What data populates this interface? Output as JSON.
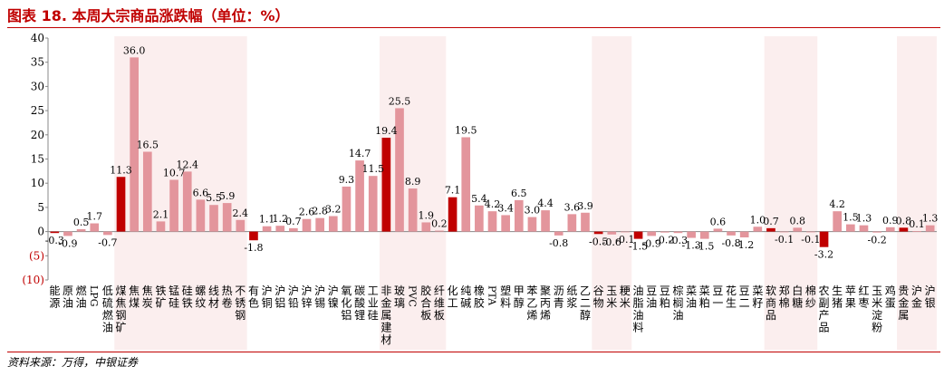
{
  "title": "图表 18. 本周大宗商品涨跌幅（单位：%）",
  "source": "资料来源：万得，中银证券",
  "colors": {
    "bar": "#e3959c",
    "highlight": "#c00000",
    "band": "#fbeeee",
    "title": "#c00000"
  },
  "chart_data": {
    "type": "bar",
    "title": "本周大宗商品涨跌幅（单位：%）",
    "ylabel": "%",
    "ylim": [
      -10,
      40
    ],
    "yticks": [
      "40",
      "35",
      "30",
      "25",
      "20",
      "15",
      "10",
      "5",
      "0",
      "(5)",
      "(10)"
    ],
    "ytick_values": [
      40,
      35,
      30,
      25,
      20,
      15,
      10,
      5,
      0,
      -5,
      -10
    ],
    "categories": [
      "能源",
      "原油",
      "燃油",
      "LPG",
      "低硫燃油",
      "煤焦钢矿",
      "焦煤",
      "焦炭",
      "铁矿",
      "锰硅",
      "硅铁",
      "螺纹",
      "线材",
      "热卷",
      "不锈钢",
      "有色",
      "沪铜",
      "沪铝",
      "沪铅",
      "沪锌",
      "沪锡",
      "沪镍",
      "氧化铝",
      "碳酸锂",
      "工业硅",
      "非金属建材",
      "玻璃",
      "PVC",
      "胶合板",
      "纤维板",
      "化工",
      "纯碱",
      "橡胶",
      "PTA",
      "塑料",
      "甲醇",
      "苯乙烯",
      "聚丙烯",
      "沥青",
      "纸浆",
      "乙二醇",
      "谷物",
      "玉米",
      "粳米",
      "油脂油料",
      "豆油",
      "豆粕",
      "棕榈油",
      "菜油",
      "菜粕",
      "豆一",
      "花生",
      "豆二",
      "菜籽",
      "软商品",
      "郑棉",
      "白糖",
      "棉纱",
      "农副产品",
      "生猪",
      "苹果",
      "红枣",
      "玉米淀粉",
      "鸡蛋",
      "贵金属",
      "沪金",
      "沪银"
    ],
    "values": [
      -0.3,
      -0.9,
      0.5,
      1.7,
      -0.7,
      11.3,
      36.0,
      16.5,
      2.1,
      10.7,
      12.4,
      6.6,
      5.5,
      5.9,
      2.4,
      -1.8,
      1.1,
      1.2,
      0.7,
      2.6,
      2.8,
      3.2,
      9.3,
      14.7,
      11.5,
      19.4,
      25.5,
      8.9,
      1.9,
      0.2,
      7.1,
      19.5,
      5.4,
      4.2,
      3.4,
      6.5,
      3.0,
      4.4,
      -0.8,
      3.6,
      3.9,
      -0.5,
      -0.6,
      -0.1,
      -1.5,
      -0.9,
      -0.2,
      -0.3,
      -1.3,
      -1.5,
      0.6,
      -0.8,
      -1.2,
      1.0,
      0.7,
      -0.1,
      0.8,
      -0.1,
      -3.2,
      4.2,
      1.5,
      1.3,
      -0.2,
      0.9,
      0.8,
      0.1,
      1.3
    ],
    "value_labels": [
      "-0.3",
      "-0.9",
      "0.5",
      "1.7",
      "-0.7",
      "11.3",
      "36.0",
      "16.5",
      "2.1",
      "10.7",
      "12.4",
      "6.6",
      "5.5",
      "5.9",
      "2.4",
      "-1.8",
      "1.1",
      "1.2",
      "0.7",
      "2.6",
      "2.8",
      "3.2",
      "9.3",
      "14.7",
      "11.5",
      "19.4",
      "25.5",
      "8.9",
      "1.9",
      "0.2",
      "7.1",
      "19.5",
      "5.4",
      "4.2",
      "3.4",
      "6.5",
      "3.0",
      "4.4",
      "-0.8",
      "3.6",
      "3.9",
      "-0.5",
      "-0.6",
      "-0.1",
      "-1.5",
      "-0.9",
      "-0.2",
      "-0.3",
      "-1.3",
      "-1.5",
      "0.6",
      "-0.8",
      "-1.2",
      "1.0",
      "0.7",
      "-0.1",
      "0.8",
      "-0.1",
      "-3.2",
      "4.2",
      "1.5",
      "1.3",
      "-0.2",
      "0.9",
      "0.8",
      "0.1",
      "1.3"
    ],
    "group_indices": [
      0,
      5,
      15,
      25,
      30,
      41,
      44,
      54,
      58,
      64
    ],
    "legend": "none",
    "grid": false
  }
}
